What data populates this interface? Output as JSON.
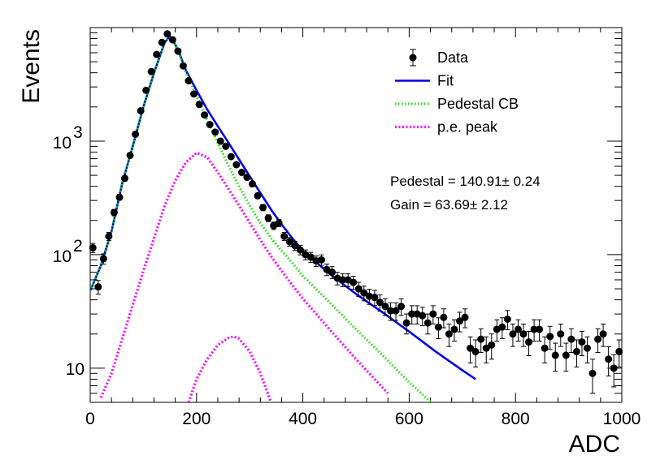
{
  "chart_data": {
    "type": "scatter",
    "xlabel": "ADC",
    "ylabel": "Events",
    "xlim": [
      0,
      1000
    ],
    "ylim": [
      5,
      10000
    ],
    "yscale": "log",
    "grid": false,
    "legend_position": "top-right",
    "x_ticks": [
      {
        "value": 0,
        "label": "0"
      },
      {
        "value": 200,
        "label": "200"
      },
      {
        "value": 400,
        "label": "400"
      },
      {
        "value": 600,
        "label": "600"
      },
      {
        "value": 800,
        "label": "800"
      },
      {
        "value": 1000,
        "label": "1000"
      }
    ],
    "y_ticks": [
      {
        "value": 10,
        "base": "10",
        "exp": ""
      },
      {
        "value": 100,
        "base": "10",
        "exp": "2"
      },
      {
        "value": 1000,
        "base": "10",
        "exp": "3"
      }
    ],
    "legend": [
      {
        "label": "Data",
        "style": "marker",
        "color": "#000000"
      },
      {
        "label": "Fit",
        "style": "solid",
        "color": "#0000ee"
      },
      {
        "label": "Pedestal CB",
        "style": "dotted",
        "color": "#22dd11"
      },
      {
        "label": "p.e. peak",
        "style": "dashed",
        "color": "#ff00ff"
      }
    ],
    "annotations": [
      "Pedestal = 140.91± 0.24",
      "Gain = 63.69± 2.12"
    ],
    "series": [
      {
        "name": "Data",
        "kind": "points",
        "color": "#000000",
        "x": [
          5,
          15,
          25,
          35,
          45,
          55,
          65,
          75,
          85,
          95,
          105,
          115,
          125,
          135,
          145,
          155,
          165,
          175,
          185,
          195,
          205,
          215,
          225,
          235,
          245,
          255,
          265,
          275,
          285,
          295,
          305,
          315,
          325,
          335,
          345,
          355,
          365,
          375,
          385,
          395,
          405,
          415,
          425,
          435,
          445,
          455,
          465,
          475,
          485,
          495,
          505,
          515,
          525,
          535,
          545,
          555,
          565,
          575,
          585,
          595,
          605,
          615,
          625,
          635,
          645,
          655,
          665,
          675,
          685,
          695,
          705,
          715,
          725,
          735,
          745,
          755,
          765,
          775,
          785,
          795,
          805,
          815,
          825,
          835,
          845,
          855,
          865,
          875,
          885,
          895,
          905,
          915,
          925,
          935,
          945,
          955,
          965,
          975,
          985,
          995
        ],
        "y": [
          115,
          52,
          92,
          145,
          235,
          320,
          470,
          750,
          1150,
          1850,
          2800,
          4100,
          5800,
          7400,
          8800,
          7800,
          6200,
          4600,
          3400,
          2600,
          2100,
          1700,
          1400,
          1200,
          1000,
          900,
          730,
          620,
          530,
          480,
          420,
          330,
          260,
          210,
          180,
          190,
          145,
          130,
          120,
          110,
          100,
          95,
          88,
          90,
          74,
          70,
          62,
          60,
          60,
          57,
          50,
          46,
          43,
          42,
          38,
          35,
          32,
          32,
          35,
          25,
          30,
          30,
          29,
          25,
          30,
          23,
          28,
          20,
          22,
          26,
          28,
          15,
          14,
          18,
          15,
          16,
          22,
          23,
          27,
          20,
          22,
          20,
          17,
          22,
          22,
          15,
          19,
          13,
          20,
          13,
          18,
          14,
          17,
          15,
          9,
          18,
          20,
          12,
          10,
          14
        ]
      },
      {
        "name": "Fit",
        "kind": "line",
        "color": "#0000ee",
        "x": [
          0,
          20,
          40,
          60,
          80,
          100,
          120,
          140,
          150,
          160,
          170,
          180,
          200,
          220,
          240,
          260,
          280,
          300,
          320,
          340,
          360,
          380,
          400,
          450,
          500,
          550,
          600,
          650,
          700,
          725
        ],
        "y": [
          48,
          80,
          160,
          420,
          900,
          2000,
          4000,
          7400,
          8400,
          7100,
          5600,
          4200,
          2800,
          1900,
          1350,
          970,
          690,
          490,
          350,
          250,
          185,
          140,
          108,
          68,
          45,
          31,
          21,
          14,
          9.6,
          8
        ]
      },
      {
        "name": "Pedestal CB",
        "kind": "line",
        "color": "#22dd11",
        "x": [
          0,
          20,
          40,
          60,
          80,
          100,
          120,
          140,
          150,
          160,
          170,
          180,
          200,
          220,
          240,
          260,
          280,
          300,
          320,
          340,
          360,
          380,
          400,
          450,
          500,
          550,
          600,
          650,
          700
        ],
        "y": [
          48,
          80,
          160,
          420,
          900,
          2000,
          4000,
          7400,
          8300,
          7000,
          5500,
          4000,
          2500,
          1550,
          960,
          610,
          400,
          270,
          190,
          140,
          108,
          85,
          65,
          38,
          22,
          13,
          7.5,
          4.6,
          3
        ]
      },
      {
        "name": "p.e. peak",
        "kind": "line",
        "color": "#ff00ff",
        "x": [
          20,
          40,
          60,
          80,
          100,
          120,
          140,
          160,
          180,
          200,
          220,
          240,
          260,
          280,
          300,
          320,
          340,
          360,
          380,
          400,
          450,
          500,
          560
        ],
        "y": [
          5.5,
          9,
          18,
          36,
          72,
          140,
          270,
          450,
          650,
          790,
          720,
          530,
          380,
          270,
          190,
          135,
          97,
          72,
          54,
          41,
          22,
          12,
          6
        ]
      },
      {
        "name": "p.e. peak 2",
        "kind": "line",
        "color": "#ff00ff",
        "x": [
          185,
          200,
          220,
          240,
          260,
          270,
          280,
          300,
          320,
          340
        ],
        "y": [
          5,
          8,
          12,
          16,
          18.5,
          19,
          18.2,
          14,
          9,
          5
        ]
      }
    ]
  }
}
